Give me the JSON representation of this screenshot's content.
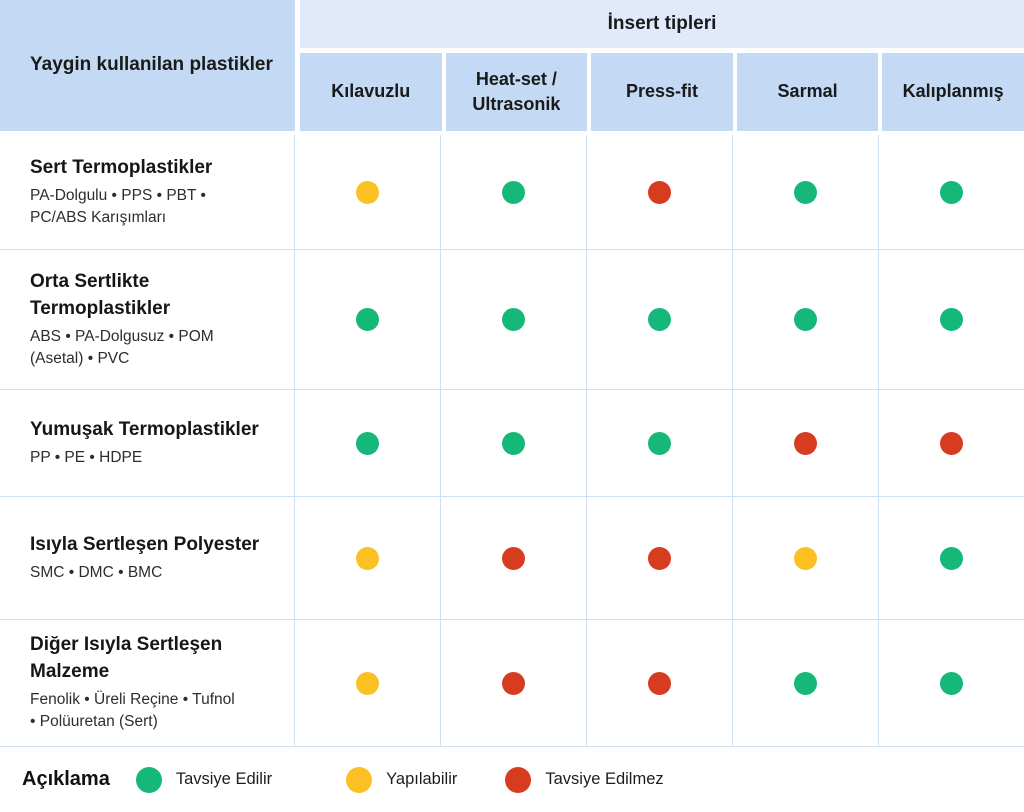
{
  "chart_data": {
    "type": "table",
    "corner_header": "Yaygin kullanilan plastikler",
    "group_header": "İnsert tipleri",
    "columns": [
      "Kılavuzlu",
      "Heat-set / Ultrasonik",
      "Press-fit",
      "Sarmal",
      "Kalıplanmış"
    ],
    "rows": [
      {
        "title": "Sert Termoplastikler",
        "materials": "PA-Dolgulu • PPS • PBT • PC/ABS Karışımları",
        "values": [
          "possible",
          "recommended",
          "not_recommended",
          "recommended",
          "recommended"
        ]
      },
      {
        "title": "Orta Sertlikte Termoplastikler",
        "materials": "ABS • PA-Dolgusuz • POM (Asetal) • PVC",
        "values": [
          "recommended",
          "recommended",
          "recommended",
          "recommended",
          "recommended"
        ]
      },
      {
        "title": "Yumuşak Termoplastikler",
        "materials": "PP • PE • HDPE",
        "values": [
          "recommended",
          "recommended",
          "recommended",
          "not_recommended",
          "not_recommended"
        ]
      },
      {
        "title": "Isıyla Sertleşen Polyester",
        "materials": "SMC • DMC • BMC",
        "values": [
          "possible",
          "not_recommended",
          "not_recommended",
          "possible",
          "recommended"
        ]
      },
      {
        "title": "Diğer Isıyla Sertleşen Malzeme",
        "materials": "Fenolik • Üreli Reçine • Tufnol • Polüuretan (Sert)",
        "values": [
          "possible",
          "not_recommended",
          "not_recommended",
          "recommended",
          "recommended"
        ]
      }
    ],
    "legend_title": "Açıklama",
    "legend": [
      {
        "key": "recommended",
        "label": "Tavsiye Edilir",
        "color": "#16b879"
      },
      {
        "key": "possible",
        "label": "Yapılabilir",
        "color": "#fcbf24"
      },
      {
        "key": "not_recommended",
        "label": "Tavsiye Edilmez",
        "color": "#d83c20"
      }
    ],
    "legend_position": "bottom"
  },
  "colors": {
    "recommended": "#16b879",
    "possible": "#fcbf24",
    "not_recommended": "#d83c20",
    "header_bg": "#c4d9f4",
    "banner_bg": "#e0eafa",
    "grid_line": "#cfe0f5"
  }
}
